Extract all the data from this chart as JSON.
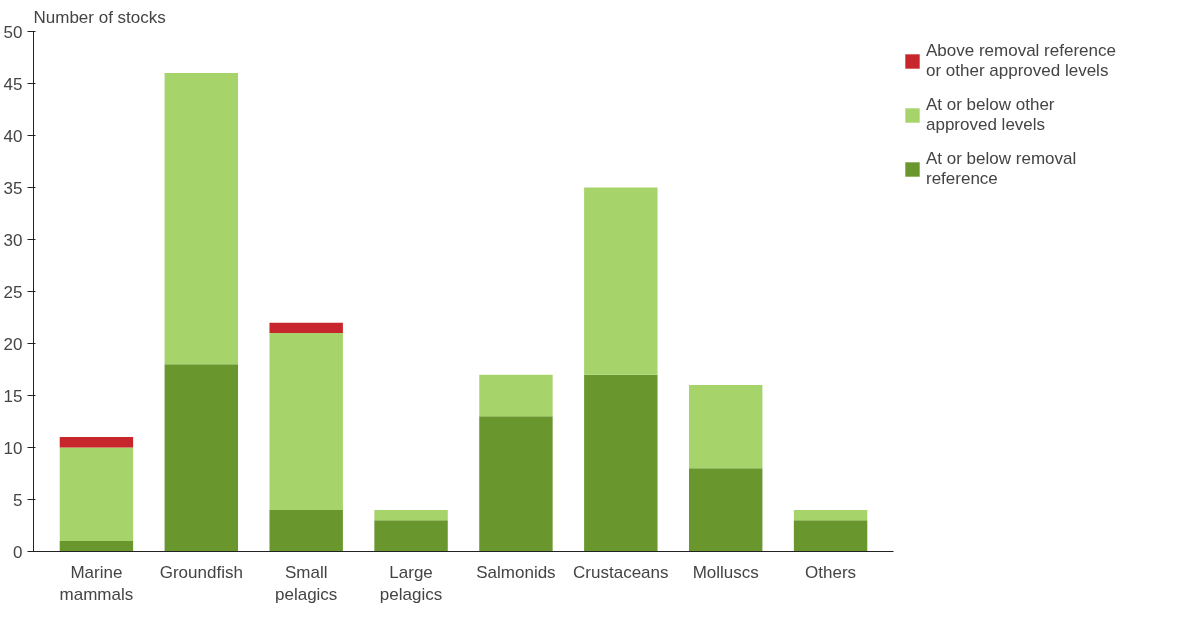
{
  "chart_data": {
    "type": "bar",
    "stacked": true,
    "ylabel": "Number of stocks",
    "categories": [
      "Marine mammals",
      "Groundfish",
      "Small pelagics",
      "Large pelagics",
      "Salmonids",
      "Crustaceans",
      "Molluscs",
      "Others"
    ],
    "series": [
      {
        "name": "At or below removal reference",
        "color": "#6a962e",
        "values": [
          1,
          18,
          4,
          3,
          13,
          17,
          8,
          3
        ]
      },
      {
        "name": "At or below other approved levels",
        "color": "#a6d46a",
        "values": [
          9,
          28,
          17,
          1,
          4,
          18,
          8,
          1
        ]
      },
      {
        "name": "Above removal reference or other approved levels",
        "color": "#c8262d",
        "values": [
          1,
          0,
          1,
          0,
          0,
          0,
          0,
          0
        ]
      }
    ],
    "ylim": [
      0,
      50
    ],
    "yticks": [
      0,
      5,
      10,
      15,
      20,
      25,
      30,
      35,
      40,
      45,
      50
    ],
    "grid": false,
    "legend": "top right"
  }
}
